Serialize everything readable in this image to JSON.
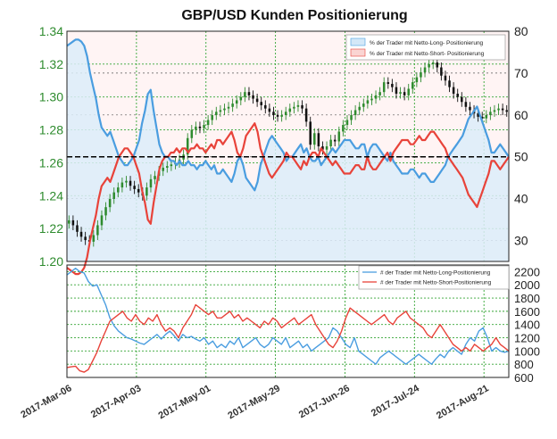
{
  "title": "GBP/USD Kunden Positionierung",
  "colors": {
    "candle_up": "#2e8b2e",
    "candle_down": "#111111",
    "long": "#4a9de0",
    "short": "#e8433a",
    "grid": "#34a534",
    "left_axis": "#2e8b2e"
  },
  "chart_data": [
    {
      "type": "candlestick+line",
      "title": "GBP/USD Kunden Positionierung",
      "x_ticks": [
        "2017-Mar-06",
        "2017-Apr-03",
        "2017-May-01",
        "2017-May-29",
        "2017-Jun-26",
        "2017-Jul-24",
        "2017-Aug-21"
      ],
      "x_range": [
        "2017-Mar-06",
        "2017-Aug-31"
      ],
      "left_axis": {
        "label": "",
        "ylim": [
          1.2,
          1.34
        ],
        "ticks": [
          "1.20",
          "1.22",
          "1.24",
          "1.26",
          "1.28",
          "1.30",
          "1.32",
          "1.34"
        ]
      },
      "right_axis": {
        "label": "",
        "ylim": [
          25,
          80
        ],
        "ticks": [
          "30",
          "40",
          "50",
          "60",
          "70",
          "80"
        ]
      },
      "reference_line": 50,
      "legend": {
        "placement": "top-right",
        "entries": [
          "% der Trader mit Netto-Long- Positionierung",
          "% der Trader mit Netto-Short- Positionierung"
        ]
      },
      "grid": true,
      "price_close": [
        1.225,
        1.222,
        1.218,
        1.215,
        1.213,
        1.212,
        1.216,
        1.222,
        1.228,
        1.233,
        1.238,
        1.242,
        1.245,
        1.248,
        1.249,
        1.246,
        1.244,
        1.242,
        1.24,
        1.245,
        1.25,
        1.252,
        1.255,
        1.257,
        1.258,
        1.259,
        1.26,
        1.262,
        1.265,
        1.275,
        1.28,
        1.282,
        1.281,
        1.283,
        1.286,
        1.289,
        1.291,
        1.292,
        1.293,
        1.294,
        1.296,
        1.298,
        1.3,
        1.303,
        1.301,
        1.299,
        1.297,
        1.295,
        1.293,
        1.291,
        1.289,
        1.288,
        1.289,
        1.291,
        1.293,
        1.294,
        1.295,
        1.293,
        1.285,
        1.271,
        1.278,
        1.27,
        1.268,
        1.27,
        1.274,
        1.273,
        1.279,
        1.283,
        1.286,
        1.289,
        1.292,
        1.294,
        1.296,
        1.298,
        1.299,
        1.301,
        1.303,
        1.309,
        1.308,
        1.306,
        1.302,
        1.303,
        1.301,
        1.305,
        1.309,
        1.312,
        1.315,
        1.318,
        1.32,
        1.321,
        1.318,
        1.313,
        1.31,
        1.306,
        1.302,
        1.3,
        1.297,
        1.294,
        1.292,
        1.29,
        1.288,
        1.287,
        1.289,
        1.291,
        1.292,
        1.293,
        1.292,
        1.291
      ],
      "pct_long": [
        76.5,
        77,
        77.5,
        78,
        78,
        77.5,
        76.5,
        74,
        70,
        67,
        64,
        60,
        57,
        56,
        55,
        56,
        54,
        52,
        50,
        49,
        48,
        48,
        49,
        50,
        52,
        54,
        58,
        61,
        65,
        66,
        61,
        57,
        53,
        51,
        50,
        50,
        49,
        49,
        48,
        49,
        48,
        48,
        49,
        48,
        48,
        47,
        48,
        48,
        49,
        48,
        47,
        48,
        46,
        46,
        47,
        46,
        45,
        44,
        46,
        49,
        50,
        48,
        45,
        44,
        43,
        42,
        44,
        48,
        50,
        52,
        54,
        55,
        54,
        53,
        52,
        51,
        49,
        50,
        50,
        51,
        52,
        53,
        51,
        52,
        50,
        49,
        49,
        50,
        48,
        49,
        50,
        51,
        52,
        51,
        52,
        53,
        54,
        54,
        54,
        53,
        52,
        52,
        53,
        53,
        50,
        52,
        53,
        53,
        52,
        51,
        50,
        49,
        51,
        49,
        48,
        47,
        46,
        46,
        46,
        47,
        47,
        46,
        45,
        46,
        46,
        45,
        44,
        44,
        45,
        46,
        47,
        48,
        50,
        51,
        52,
        53,
        54,
        55,
        57,
        59,
        60,
        61,
        62,
        60,
        58,
        56,
        54,
        51,
        51,
        52,
        53,
        52,
        51,
        50
      ],
      "pct_short": [
        23.5,
        23,
        22.5,
        22,
        22,
        22.5,
        23.5,
        26,
        30,
        33,
        36,
        40,
        43,
        44,
        45,
        44,
        46,
        48,
        50,
        51,
        52,
        52,
        51,
        50,
        48,
        46,
        42,
        39,
        35,
        34,
        39,
        43,
        47,
        49,
        50,
        50,
        51,
        51,
        52,
        51,
        52,
        52,
        51,
        52,
        52,
        53,
        52,
        52,
        51,
        52,
        53,
        52,
        54,
        54,
        53,
        54,
        55,
        56,
        54,
        51,
        50,
        52,
        55,
        56,
        57,
        58,
        56,
        52,
        50,
        48,
        46,
        45,
        46,
        47,
        48,
        49,
        51,
        50,
        50,
        49,
        48,
        47,
        49,
        48,
        50,
        51,
        51,
        50,
        52,
        51,
        50,
        49,
        48,
        49,
        48,
        47,
        46,
        46,
        46,
        47,
        48,
        48,
        47,
        47,
        50,
        48,
        47,
        47,
        48,
        49,
        50,
        51,
        49,
        51,
        52,
        53,
        54,
        54,
        54,
        53,
        53,
        54,
        55,
        54,
        54,
        55,
        56,
        56,
        55,
        54,
        53,
        52,
        50,
        49,
        48,
        47,
        46,
        45,
        43,
        41,
        40,
        39,
        38,
        40,
        42,
        44,
        46,
        49,
        49,
        48,
        47,
        48,
        49,
        50
      ]
    },
    {
      "type": "line",
      "title": "",
      "x_ticks": [
        "2017-Mar-06",
        "2017-Apr-03",
        "2017-May-01",
        "2017-May-29",
        "2017-Jun-26",
        "2017-Jul-24",
        "2017-Aug-21"
      ],
      "right_axis": {
        "label": "",
        "ylim": [
          600,
          2300
        ],
        "ticks": [
          "600",
          "800",
          "1000",
          "1200",
          "1400",
          "1600",
          "1800",
          "2000",
          "2200"
        ]
      },
      "legend": {
        "placement": "top-right",
        "entries": [
          "# der Trader mit Netto-Long-Positionierung",
          "# der Trader mit Netto-Short-Positionierung"
        ]
      },
      "grid": true,
      "series": [
        {
          "name": "# der Trader mit Netto-Long-Positionierung",
          "values": [
            2150,
            2200,
            2250,
            2200,
            2180,
            2050,
            1980,
            2000,
            1850,
            1700,
            1500,
            1380,
            1300,
            1250,
            1200,
            1180,
            1150,
            1120,
            1100,
            1150,
            1200,
            1250,
            1180,
            1250,
            1300,
            1230,
            1150,
            1250,
            1200,
            1220,
            1180,
            1150,
            1200,
            1100,
            1150,
            1050,
            1100,
            1050,
            1150,
            1100,
            1200,
            1050,
            1100,
            1150,
            1200,
            1100,
            1050,
            1100,
            1200,
            1150,
            1100,
            1200,
            1050,
            1100,
            1150,
            1050,
            1100,
            1000,
            1050,
            1100,
            1150,
            1200,
            1350,
            1300,
            1200,
            1100,
            1050,
            1200,
            1000,
            950,
            900,
            850,
            800,
            900,
            950,
            1000,
            950,
            900,
            850,
            800,
            850,
            900,
            950,
            900,
            850,
            800,
            880,
            950,
            900,
            1000,
            1050,
            1000,
            950,
            1100,
            1200,
            1150,
            1300,
            1350,
            1200,
            1000,
            1050,
            1000,
            980,
            1000
          ]
        },
        {
          "name": "# der Trader mit Netto-Short-Positionierung",
          "values": [
            750,
            760,
            770,
            700,
            680,
            720,
            850,
            980,
            1150,
            1300,
            1450,
            1500,
            1550,
            1600,
            1500,
            1450,
            1550,
            1450,
            1400,
            1500,
            1450,
            1550,
            1400,
            1300,
            1350,
            1300,
            1200,
            1350,
            1450,
            1550,
            1700,
            1650,
            1600,
            1550,
            1600,
            1500,
            1500,
            1550,
            1600,
            1500,
            1550,
            1450,
            1500,
            1450,
            1400,
            1350,
            1450,
            1400,
            1500,
            1450,
            1350,
            1400,
            1450,
            1500,
            1400,
            1450,
            1500,
            1550,
            1400,
            1300,
            1200,
            1100,
            1050,
            1150,
            1300,
            1500,
            1650,
            1600,
            1550,
            1500,
            1450,
            1400,
            1450,
            1500,
            1550,
            1450,
            1400,
            1500,
            1550,
            1600,
            1500,
            1450,
            1400,
            1350,
            1250,
            1200,
            1300,
            1400,
            1300,
            1200,
            1100,
            1050,
            1000,
            1050,
            1000,
            1100,
            1050,
            1000,
            1050,
            1100,
            1200,
            1100,
            1050,
            1000
          ]
        }
      ]
    }
  ]
}
